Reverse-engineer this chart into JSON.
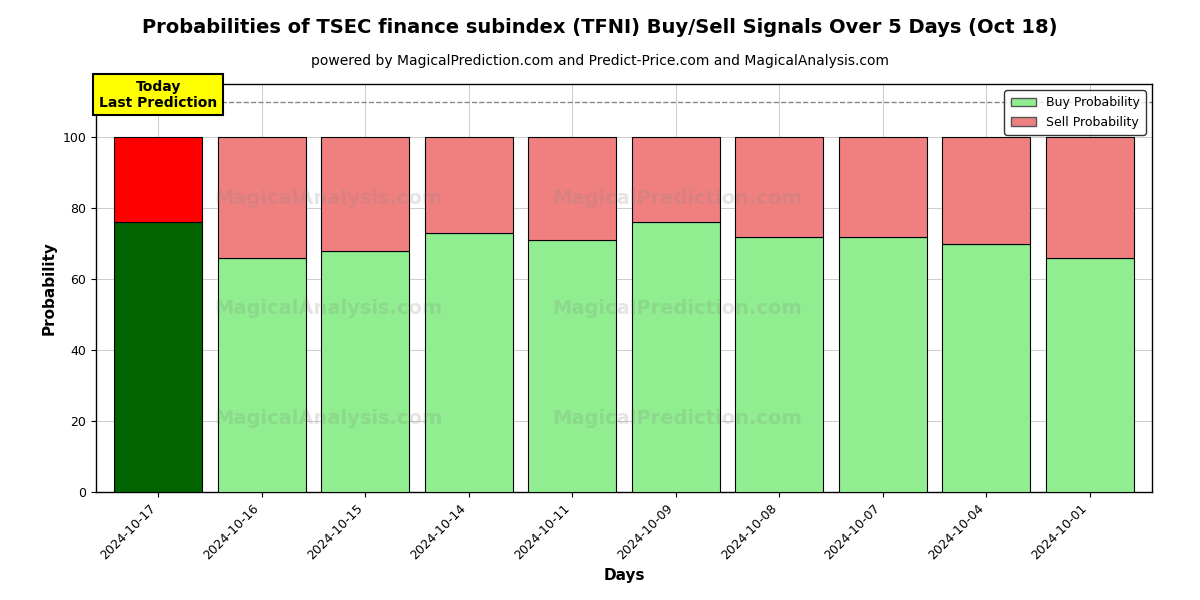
{
  "title": "Probabilities of TSEC finance subindex (TFNI) Buy/Sell Signals Over 5 Days (Oct 18)",
  "subtitle": "powered by MagicalPrediction.com and Predict-Price.com and MagicalAnalysis.com",
  "xlabel": "Days",
  "ylabel": "Probability",
  "dates": [
    "2024-10-17",
    "2024-10-16",
    "2024-10-15",
    "2024-10-14",
    "2024-10-11",
    "2024-10-09",
    "2024-10-08",
    "2024-10-07",
    "2024-10-04",
    "2024-10-01"
  ],
  "buy_values": [
    76,
    66,
    68,
    73,
    71,
    76,
    72,
    72,
    70,
    66
  ],
  "sell_values": [
    24,
    34,
    32,
    27,
    29,
    24,
    28,
    28,
    30,
    34
  ],
  "today_buy_color": "#006400",
  "today_sell_color": "#FF0000",
  "buy_color": "#90EE90",
  "sell_color": "#F08080",
  "bar_edge_color": "#000000",
  "bar_width": 0.85,
  "ylim": [
    0,
    115
  ],
  "yticks": [
    0,
    20,
    40,
    60,
    80,
    100
  ],
  "today_label": "Today\nLast Prediction",
  "today_box_color": "#FFFF00",
  "today_box_edge": "#000000",
  "dashed_line_y": 110,
  "dashed_line_color": "#888888",
  "watermark_texts": [
    "MagicalAnalysis.com",
    "MagicalPrediction.com"
  ],
  "background_color": "#ffffff",
  "grid_color": "#cccccc",
  "title_fontsize": 14,
  "subtitle_fontsize": 10,
  "axis_label_fontsize": 11,
  "tick_fontsize": 9
}
